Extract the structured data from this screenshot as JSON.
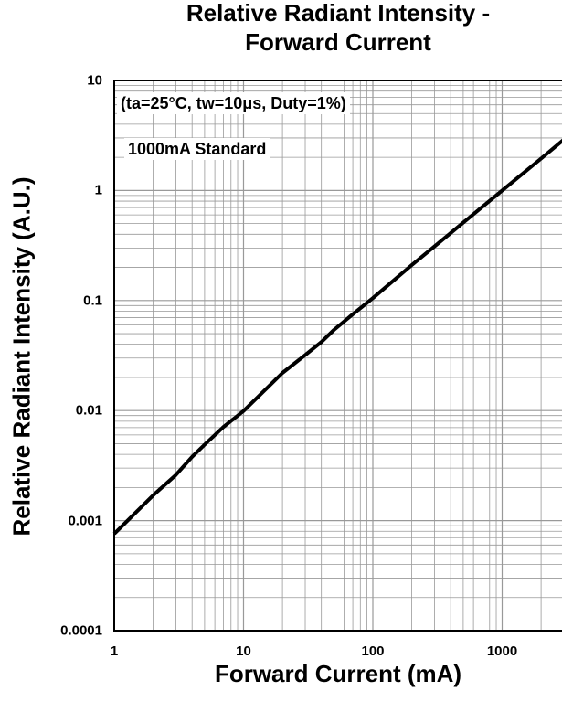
{
  "chart_data": {
    "type": "line",
    "title": "Relative Radiant Intensity -",
    "subtitle": "Forward Current",
    "xlabel": "Forward Current (mA)",
    "ylabel": "Relative Radiant Intensity (A.U.)",
    "x_scale": "log",
    "y_scale": "log",
    "xlim": [
      1,
      3000
    ],
    "ylim": [
      0.0001,
      10
    ],
    "x_ticks": [
      {
        "value": 1,
        "label": "1"
      },
      {
        "value": 10,
        "label": "10"
      },
      {
        "value": 100,
        "label": "100"
      },
      {
        "value": 1000,
        "label": "1000"
      }
    ],
    "y_ticks": [
      {
        "value": 10,
        "label": "10"
      },
      {
        "value": 1,
        "label": "1"
      },
      {
        "value": 0.1,
        "label": "0.1"
      },
      {
        "value": 0.01,
        "label": "0.01"
      },
      {
        "value": 0.001,
        "label": "0.001"
      },
      {
        "value": 0.0001,
        "label": "0.0001"
      }
    ],
    "grid": true,
    "annotations": [
      "(ta=25°C, tw=10μs, Duty=1%)",
      "1000mA Standard"
    ],
    "series": [
      {
        "x": [
          1,
          2,
          3,
          4,
          5,
          7,
          10,
          20,
          30,
          40,
          50,
          70,
          100,
          200,
          300,
          500,
          1000,
          2000,
          3000
        ],
        "y": [
          0.00076,
          0.0017,
          0.0026,
          0.0038,
          0.0049,
          0.0071,
          0.0099,
          0.022,
          0.032,
          0.042,
          0.054,
          0.075,
          0.105,
          0.21,
          0.31,
          0.51,
          1.0,
          1.95,
          2.9
        ]
      }
    ]
  },
  "colors": {
    "curve": "#000000",
    "grid": "#999999",
    "frame": "#000000"
  }
}
